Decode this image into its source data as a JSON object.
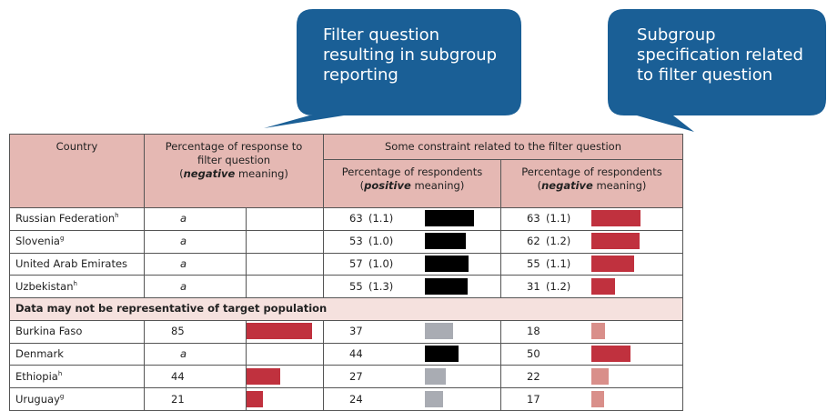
{
  "callouts": [
    {
      "lines": [
        "Filter question",
        "resulting in subgroup",
        "reporting"
      ]
    },
    {
      "lines": [
        "Subgroup",
        "specification related",
        "to filter question"
      ]
    }
  ],
  "table": {
    "header": {
      "country": "Country",
      "filter": {
        "line1": "Percentage of response to",
        "line2": "filter question",
        "line3": [
          "(",
          "negative",
          " meaning)"
        ]
      },
      "constraint": "Some constraint related to the filter question",
      "positive": {
        "line1": "Percentage of respondents",
        "line2": [
          "(",
          "positive",
          " meaning)"
        ]
      },
      "negative": {
        "line1": "Percentage of respondents",
        "line2": [
          "(",
          "negative",
          " meaning)"
        ]
      }
    },
    "bar_scale_max": 100,
    "rows": [
      {
        "country": "Russian Federation",
        "note": "h",
        "filter": {
          "value": "a"
        },
        "positive": {
          "value": 63,
          "se": 1.1,
          "se_label": "(1.1)",
          "color": "#000000"
        },
        "negative": {
          "value": 63,
          "se": 1.1,
          "se_label": "(1.1)",
          "color": "#c0313e"
        }
      },
      {
        "country": "Slovenia",
        "note": "g",
        "filter": {
          "value": "a"
        },
        "positive": {
          "value": 53,
          "se": 1.0,
          "se_label": "(1.0)",
          "color": "#000000"
        },
        "negative": {
          "value": 62,
          "se": 1.2,
          "se_label": "(1.2)",
          "color": "#c0313e"
        }
      },
      {
        "country": "United Arab Emirates",
        "note": "",
        "filter": {
          "value": "a"
        },
        "positive": {
          "value": 57,
          "se": 1.0,
          "se_label": "(1.0)",
          "color": "#000000"
        },
        "negative": {
          "value": 55,
          "se": 1.1,
          "se_label": "(1.1)",
          "color": "#c0313e"
        }
      },
      {
        "country": "Uzbekistan",
        "note": "h",
        "filter": {
          "value": "a"
        },
        "positive": {
          "value": 55,
          "se": 1.3,
          "se_label": "(1.3)",
          "color": "#000000"
        },
        "negative": {
          "value": 31,
          "se": 1.2,
          "se_label": "(1.2)",
          "color": "#c0313e"
        }
      },
      {
        "section": "Data may not be representative of target population"
      },
      {
        "country": "Burkina Faso",
        "note": "",
        "filter": {
          "value": 85,
          "color": "#c0313e"
        },
        "positive": {
          "value": 37,
          "color": "#a9acb3"
        },
        "negative": {
          "value": 18,
          "color": "#d98f8a"
        }
      },
      {
        "country": "Denmark",
        "note": "",
        "filter": {
          "value": "a"
        },
        "positive": {
          "value": 44,
          "color": "#000000"
        },
        "negative": {
          "value": 50,
          "color": "#c0313e"
        }
      },
      {
        "country": "Ethiopia",
        "note": "h",
        "filter": {
          "value": 44,
          "color": "#c0313e"
        },
        "positive": {
          "value": 27,
          "color": "#a9acb3"
        },
        "negative": {
          "value": 22,
          "color": "#d98f8a"
        }
      },
      {
        "country": "Uruguay",
        "note": "g",
        "filter": {
          "value": 21,
          "color": "#c0313e"
        },
        "positive": {
          "value": 24,
          "color": "#a9acb3"
        },
        "negative": {
          "value": 17,
          "color": "#d98f8a"
        }
      }
    ]
  }
}
